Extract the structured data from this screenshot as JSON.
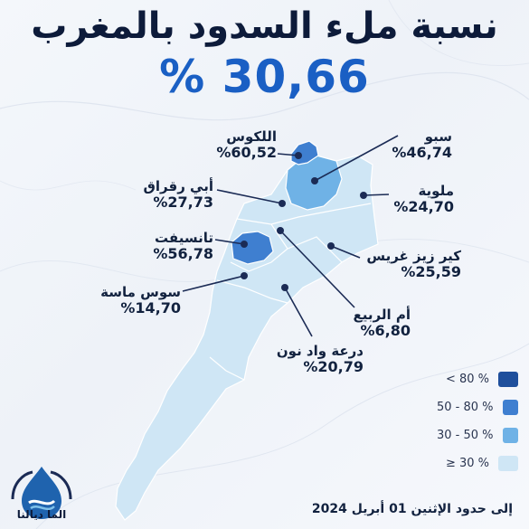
{
  "title": "نسبة ملء السدود بالمغرب",
  "national_rate": "% 30,66",
  "regions": [
    {
      "id": "loukkos",
      "name": "اللكوس",
      "value": "%60,52",
      "fill": "#1f63ae"
    },
    {
      "id": "sebou",
      "name": "سبو",
      "value": "%46,74",
      "fill": "#3aa0dd"
    },
    {
      "id": "moulouya",
      "name": "ملوية",
      "value": "%24,70",
      "fill": "#c9e3f4"
    },
    {
      "id": "bouregreg",
      "name": "أبي رقراق",
      "value": "%27,73",
      "fill": "#c9e3f4"
    },
    {
      "id": "tensift",
      "name": "تانسيفت",
      "value": "%56,78",
      "fill": "#1f63ae"
    },
    {
      "id": "ziz-guir-rheris",
      "name": "كير زيز غريس",
      "value": "%25,59",
      "fill": "#c9e3f4"
    },
    {
      "id": "souss-massa",
      "name": "سوس ماسة",
      "value": "%14,70",
      "fill": "#c9e3f4"
    },
    {
      "id": "oum-rbia",
      "name": "أم الربيع",
      "value": "%6,80",
      "fill": "#c9e3f4"
    },
    {
      "id": "draa-oued-noun",
      "name": "درعة واد نون",
      "value": "%20,79",
      "fill": "#c9e3f4"
    }
  ],
  "legend": [
    {
      "label": "< 80 %",
      "color": "#1f4f9c"
    },
    {
      "label": "50 - 80 %",
      "color": "#3f7fd0"
    },
    {
      "label": "30 - 50 %",
      "color": "#6fb2e6"
    },
    {
      "label": "≥ 30 %",
      "color": "#cfe6f5"
    }
  ],
  "date": "إلى حدود الإثنين 01 أبريل 2024",
  "logo_text": "الما ديالنا",
  "colors": {
    "title": "#0d1b3a",
    "headline": "#1a5fc4",
    "marker": "#1b2b55",
    "land": "#cfe6f5",
    "border": "#ffffff"
  }
}
